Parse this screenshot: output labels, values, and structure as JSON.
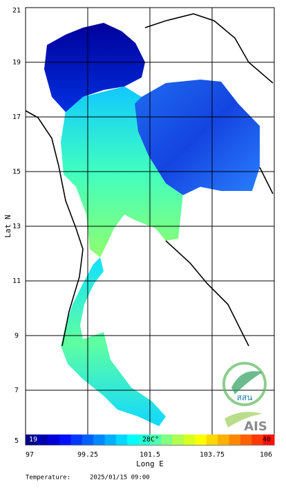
{
  "map": {
    "y_axis_label": "Lat N",
    "x_axis_label": "Long E",
    "lat_range": [
      5,
      21
    ],
    "lat_ticks": [
      21,
      19,
      17,
      15,
      13,
      11,
      9,
      7,
      5
    ],
    "lon_range": [
      97,
      106
    ],
    "lon_ticks": [
      97,
      99.25,
      101.5,
      103.75,
      106
    ],
    "grid": true
  },
  "colorbar": {
    "min": 19,
    "max": 40,
    "mid_label": "28C°",
    "colors": [
      "#00008f",
      "#0000b0",
      "#0000d8",
      "#0010ff",
      "#0038ff",
      "#0060ff",
      "#0088ff",
      "#00b0ff",
      "#00d8ff",
      "#00ffff",
      "#20ffd8",
      "#50ffb0",
      "#80ff80",
      "#b0ff50",
      "#d8ff20",
      "#ffff00",
      "#ffd800",
      "#ffb000",
      "#ff8800",
      "#ff6000",
      "#ff3800",
      "#ff1000"
    ]
  },
  "footer": {
    "label": "Temperature:",
    "timestamp": "2025/01/15 09:00"
  },
  "logos": {
    "primary": "สสน",
    "secondary": "AIS"
  }
}
